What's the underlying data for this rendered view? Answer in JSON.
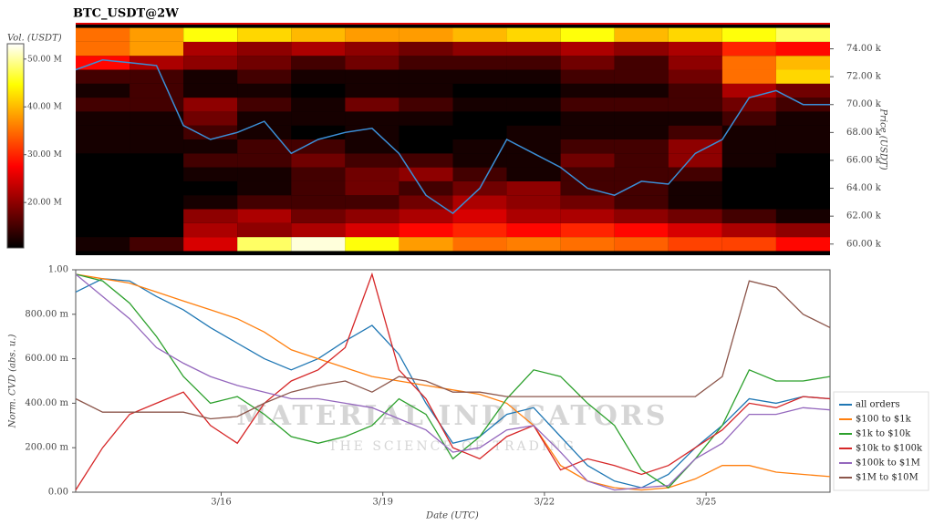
{
  "chart_data": [
    {
      "type": "heatmap",
      "title": "BTC_USDT@2W",
      "ylabel": "Price (USDT)",
      "colorbar_label": "Vol. (USDT)",
      "colormap": "hot",
      "clim": [
        10500000,
        53200000
      ],
      "cticks": [
        {
          "value": 20000000,
          "label": "20.00 M"
        },
        {
          "value": 30000000,
          "label": "30.00 M"
        },
        {
          "value": 40000000,
          "label": "40.00 M"
        },
        {
          "value": 50000000,
          "label": "50.00 M"
        }
      ],
      "xlim": [
        13.3,
        27.3
      ],
      "ylim": [
        59200,
        75800
      ],
      "yticks": [
        {
          "value": 60000,
          "label": "60.00 k"
        },
        {
          "value": 62000,
          "label": "62.00 k"
        },
        {
          "value": 64000,
          "label": "64.00 k"
        },
        {
          "value": 66000,
          "label": "66.00 k"
        },
        {
          "value": 68000,
          "label": "68.00 k"
        },
        {
          "value": 70000,
          "label": "70.00 k"
        },
        {
          "value": 72000,
          "label": "72.00 k"
        },
        {
          "value": 74000,
          "label": "74.00 k"
        }
      ],
      "heatmap": {
        "x": [
          13.8,
          14.8,
          15.8,
          16.8,
          17.8,
          18.8,
          19.8,
          20.8,
          21.8,
          22.8,
          23.8,
          24.8,
          25.8,
          26.8
        ],
        "y": [
          60000,
          61000,
          62000,
          63000,
          64000,
          65000,
          66000,
          67000,
          68000,
          69000,
          70000,
          71000,
          72000,
          73000,
          74000,
          75000
        ],
        "z": [
          [
            12000000,
            15000000,
            25000000,
            48000000,
            52000000,
            45000000,
            38000000,
            35000000,
            36000000,
            35000000,
            34000000,
            32000000,
            32000000,
            28000000
          ],
          [
            10000000,
            10000000,
            22000000,
            20000000,
            22000000,
            25000000,
            28000000,
            30000000,
            28000000,
            30000000,
            28000000,
            25000000,
            22000000,
            20000000
          ],
          [
            10000000,
            10000000,
            20000000,
            22000000,
            18000000,
            20000000,
            22000000,
            25000000,
            22000000,
            22000000,
            20000000,
            18000000,
            15000000,
            12000000
          ],
          [
            10000000,
            10000000,
            12000000,
            15000000,
            15000000,
            15000000,
            18000000,
            22000000,
            20000000,
            18000000,
            15000000,
            12000000,
            10000000,
            10000000
          ],
          [
            10000000,
            10000000,
            10000000,
            12000000,
            15000000,
            18000000,
            15000000,
            18000000,
            20000000,
            15000000,
            15000000,
            12000000,
            10000000,
            10000000
          ],
          [
            10000000,
            10000000,
            12000000,
            12000000,
            15000000,
            18000000,
            20000000,
            15000000,
            12000000,
            15000000,
            15000000,
            15000000,
            10000000,
            10000000
          ],
          [
            10000000,
            10000000,
            15000000,
            15000000,
            18000000,
            15000000,
            15000000,
            12000000,
            12000000,
            18000000,
            15000000,
            20000000,
            12000000,
            10000000
          ],
          [
            12000000,
            12000000,
            12000000,
            15000000,
            15000000,
            12000000,
            10000000,
            12000000,
            12000000,
            15000000,
            15000000,
            20000000,
            12000000,
            12000000
          ],
          [
            12000000,
            12000000,
            15000000,
            12000000,
            10000000,
            12000000,
            10000000,
            10000000,
            12000000,
            12000000,
            12000000,
            15000000,
            12000000,
            12000000
          ],
          [
            12000000,
            12000000,
            18000000,
            12000000,
            12000000,
            12000000,
            12000000,
            10000000,
            10000000,
            12000000,
            12000000,
            12000000,
            15000000,
            12000000
          ],
          [
            15000000,
            15000000,
            20000000,
            15000000,
            12000000,
            18000000,
            15000000,
            12000000,
            12000000,
            15000000,
            15000000,
            15000000,
            18000000,
            15000000
          ],
          [
            12000000,
            15000000,
            12000000,
            12000000,
            10000000,
            12000000,
            12000000,
            10000000,
            10000000,
            12000000,
            12000000,
            15000000,
            22000000,
            18000000
          ],
          [
            15000000,
            15000000,
            12000000,
            15000000,
            12000000,
            12000000,
            12000000,
            12000000,
            12000000,
            15000000,
            15000000,
            18000000,
            35000000,
            42000000
          ],
          [
            28000000,
            22000000,
            20000000,
            18000000,
            15000000,
            18000000,
            15000000,
            15000000,
            15000000,
            18000000,
            15000000,
            20000000,
            35000000,
            40000000
          ],
          [
            35000000,
            38000000,
            22000000,
            20000000,
            22000000,
            20000000,
            18000000,
            20000000,
            20000000,
            22000000,
            20000000,
            22000000,
            30000000,
            28000000
          ],
          [
            35000000,
            38000000,
            45000000,
            42000000,
            40000000,
            38000000,
            38000000,
            40000000,
            42000000,
            45000000,
            40000000,
            42000000,
            45000000,
            48000000
          ]
        ]
      },
      "x": [
        13.3,
        13.8,
        14.3,
        14.8,
        15.3,
        15.8,
        16.3,
        16.8,
        17.3,
        17.8,
        18.3,
        18.8,
        19.3,
        19.8,
        20.3,
        20.8,
        21.3,
        21.8,
        22.3,
        22.8,
        23.3,
        23.8,
        24.3,
        24.8,
        25.3,
        25.8,
        26.3,
        26.8,
        27.3
      ],
      "series": [
        {
          "color": "#3b8ed6",
          "values": [
            72500,
            73200,
            73000,
            72800,
            68500,
            67500,
            68000,
            68800,
            66500,
            67500,
            68000,
            68300,
            66500,
            63500,
            62200,
            64000,
            67500,
            66500,
            65500,
            64000,
            63500,
            64500,
            64300,
            66500,
            67500,
            70500,
            71000,
            70000,
            70000
          ]
        }
      ]
    },
    {
      "type": "line",
      "xlabel": "Date (UTC)",
      "ylabel": "Norm. CVD (abs. u.)",
      "legend": "right",
      "watermark": [
        "MATERIAL INDICATORS",
        "THE SCIENCE OF TRADING"
      ],
      "xlim": [
        13.3,
        27.3
      ],
      "xticks": [
        {
          "value": 16,
          "label": "3/16"
        },
        {
          "value": 19,
          "label": "3/19"
        },
        {
          "value": 22,
          "label": "3/22"
        },
        {
          "value": 25,
          "label": "3/25"
        }
      ],
      "ylim": [
        0,
        1
      ],
      "yticks": [
        {
          "value": 0,
          "label": "0.00"
        },
        {
          "value": 0.2,
          "label": "200.00 m"
        },
        {
          "value": 0.4,
          "label": "400.00 m"
        },
        {
          "value": 0.6,
          "label": "600.00 m"
        },
        {
          "value": 0.8,
          "label": "800.00 m"
        },
        {
          "value": 1,
          "label": "1.00"
        }
      ],
      "x": [
        13.3,
        13.8,
        14.3,
        14.8,
        15.3,
        15.8,
        16.3,
        16.8,
        17.3,
        17.8,
        18.3,
        18.8,
        19.3,
        19.8,
        20.3,
        20.8,
        21.3,
        21.8,
        22.3,
        22.8,
        23.3,
        23.8,
        24.3,
        24.8,
        25.3,
        25.8,
        26.3,
        26.8,
        27.3
      ],
      "series": [
        {
          "name": "all orders",
          "color": "#1f77b4",
          "values": [
            0.9,
            0.96,
            0.95,
            0.88,
            0.82,
            0.74,
            0.67,
            0.6,
            0.55,
            0.6,
            0.68,
            0.75,
            0.62,
            0.4,
            0.22,
            0.25,
            0.35,
            0.38,
            0.25,
            0.12,
            0.05,
            0.02,
            0.08,
            0.2,
            0.3,
            0.42,
            0.4,
            0.43,
            0.42
          ]
        },
        {
          "name": "$100 to $1k",
          "color": "#ff7f0e",
          "values": [
            0.98,
            0.96,
            0.94,
            0.9,
            0.86,
            0.82,
            0.78,
            0.72,
            0.64,
            0.6,
            0.56,
            0.52,
            0.5,
            0.48,
            0.46,
            0.44,
            0.4,
            0.3,
            0.12,
            0.05,
            0.02,
            0.01,
            0.02,
            0.06,
            0.12,
            0.12,
            0.09,
            0.08,
            0.07
          ]
        },
        {
          "name": "$1k to $10k",
          "color": "#2ca02c",
          "values": [
            0.98,
            0.95,
            0.85,
            0.7,
            0.52,
            0.4,
            0.43,
            0.35,
            0.25,
            0.22,
            0.25,
            0.3,
            0.42,
            0.35,
            0.15,
            0.25,
            0.42,
            0.55,
            0.52,
            0.4,
            0.3,
            0.1,
            0.02,
            0.15,
            0.3,
            0.55,
            0.5,
            0.5,
            0.52
          ]
        },
        {
          "name": "$10k to $100k",
          "color": "#d62728",
          "values": [
            0.01,
            0.2,
            0.35,
            0.4,
            0.45,
            0.3,
            0.22,
            0.4,
            0.5,
            0.55,
            0.65,
            0.98,
            0.55,
            0.42,
            0.2,
            0.15,
            0.25,
            0.3,
            0.1,
            0.15,
            0.12,
            0.08,
            0.12,
            0.2,
            0.28,
            0.4,
            0.38,
            0.43,
            0.42
          ]
        },
        {
          "name": "$100k to $1M",
          "color": "#9467bd",
          "values": [
            0.98,
            0.88,
            0.78,
            0.65,
            0.58,
            0.52,
            0.48,
            0.45,
            0.42,
            0.42,
            0.4,
            0.38,
            0.33,
            0.28,
            0.18,
            0.2,
            0.28,
            0.3,
            0.18,
            0.05,
            0.01,
            0.02,
            0.03,
            0.15,
            0.22,
            0.35,
            0.35,
            0.38,
            0.37
          ]
        },
        {
          "name": "$1M to $10M",
          "color": "#8c564b",
          "values": [
            0.42,
            0.36,
            0.36,
            0.36,
            0.36,
            0.33,
            0.34,
            0.4,
            0.45,
            0.48,
            0.5,
            0.45,
            0.52,
            0.5,
            0.45,
            0.45,
            0.43,
            0.43,
            0.43,
            0.43,
            0.43,
            0.43,
            0.43,
            0.43,
            0.52,
            0.95,
            0.92,
            0.8,
            0.74
          ]
        }
      ]
    }
  ]
}
